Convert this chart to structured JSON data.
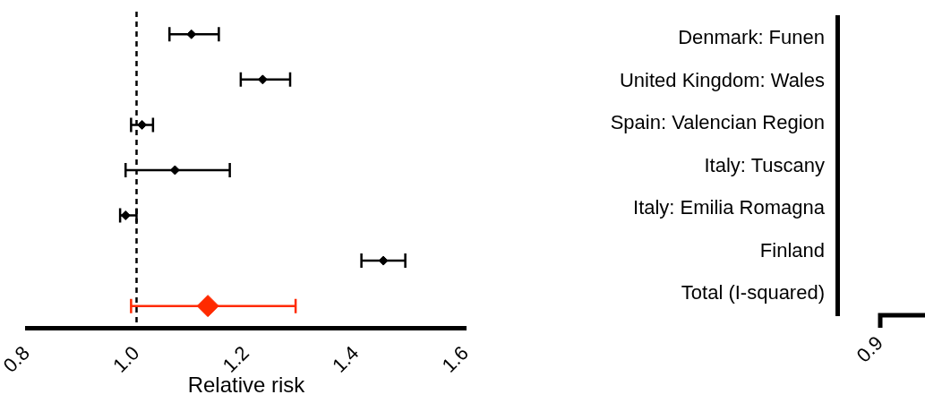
{
  "chart_data": [
    {
      "type": "scatter",
      "orientation": "horizontal",
      "categories": [
        null,
        null,
        null,
        null,
        null,
        null,
        null
      ],
      "series": [
        {
          "color": "#000000",
          "values": [
            1.1,
            1.23,
            1.01,
            1.07,
            0.98,
            1.45,
            null
          ],
          "errors": [
            [
              1.06,
              1.15
            ],
            [
              1.19,
              1.28
            ],
            [
              0.99,
              1.03
            ],
            [
              0.98,
              1.17
            ],
            [
              0.97,
              1.0
            ],
            [
              1.41,
              1.49
            ],
            null
          ]
        },
        {
          "color": "#ff2a00",
          "values": [
            null,
            null,
            null,
            null,
            null,
            null,
            1.13
          ],
          "errors": [
            null,
            null,
            null,
            null,
            null,
            null,
            [
              0.99,
              1.29
            ]
          ]
        }
      ],
      "xlim": [
        0.8,
        1.6
      ],
      "xticks": [
        0.8,
        {
          "value": 1,
          "label": "1.0"
        },
        1.2,
        1.4,
        1.6
      ],
      "xlabel": "Relative risk",
      "ref_lines": [
        {
          "axis": "x",
          "value": 1,
          "line_style": "dashed"
        }
      ],
      "marker": "diamond",
      "grid": false,
      "legend": false
    },
    {
      "type": "other",
      "categories": [
        "Denmark: Funen",
        "United Kingdom: Wales",
        "Spain: Valencian Region",
        "Italy: Tuscany",
        "Italy: Emilia Romagna",
        "Finland",
        "Total (I-squared)"
      ],
      "annotations": [
        "0.9"
      ]
    }
  ]
}
